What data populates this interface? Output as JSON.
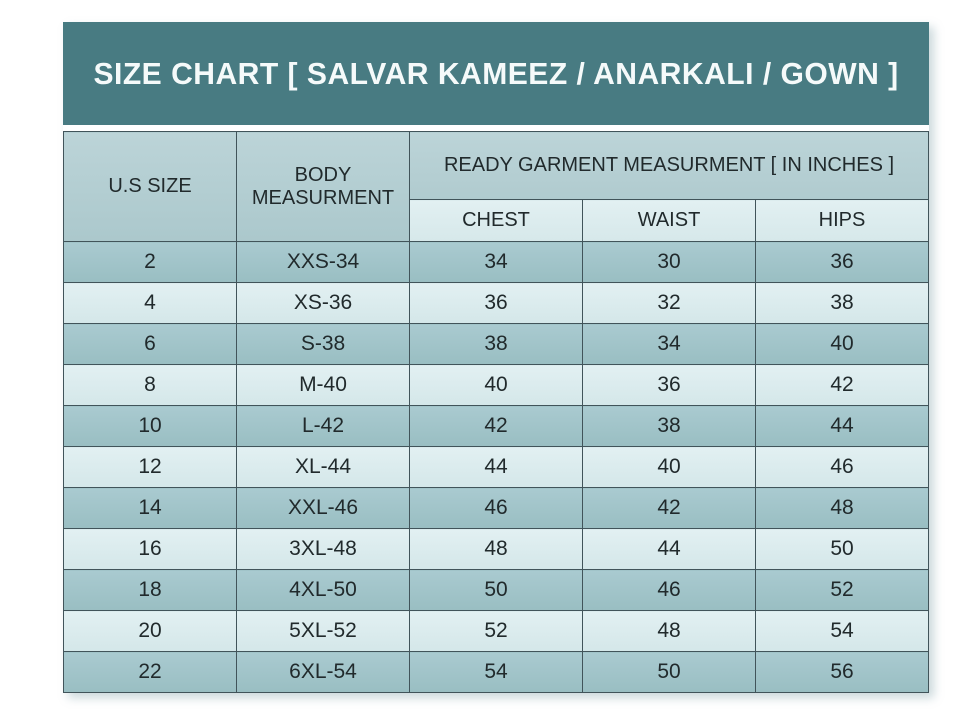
{
  "title_bar": {
    "text": "SIZE CHART [ SALVAR KAMEEZ / ANARKALI / GOWN ]"
  },
  "chart_data": {
    "type": "table",
    "title": "SIZE CHART [ SALVAR KAMEEZ / ANARKALI / GOWN ]",
    "header": {
      "us_size": "U.S SIZE",
      "body_measurement": "BODY MEASURMENT",
      "group": "READY GARMENT MEASURMENT [ IN INCHES ]",
      "sub_columns": [
        "CHEST",
        "WAIST",
        "HIPS"
      ]
    },
    "columns": [
      "U.S SIZE",
      "BODY MEASURMENT",
      "CHEST",
      "WAIST",
      "HIPS"
    ],
    "rows": [
      [
        "2",
        "XXS-34",
        "34",
        "30",
        "36"
      ],
      [
        "4",
        "XS-36",
        "36",
        "32",
        "38"
      ],
      [
        "6",
        "S-38",
        "38",
        "34",
        "40"
      ],
      [
        "8",
        "M-40",
        "40",
        "36",
        "42"
      ],
      [
        "10",
        "L-42",
        "42",
        "38",
        "44"
      ],
      [
        "12",
        "XL-44",
        "44",
        "40",
        "46"
      ],
      [
        "14",
        "XXL-46",
        "46",
        "42",
        "48"
      ],
      [
        "16",
        "3XL-48",
        "48",
        "44",
        "50"
      ],
      [
        "18",
        "4XL-50",
        "50",
        "46",
        "52"
      ],
      [
        "20",
        "5XL-52",
        "52",
        "48",
        "54"
      ],
      [
        "22",
        "6XL-54",
        "54",
        "50",
        "56"
      ]
    ]
  },
  "colors": {
    "title_bg": "#487b82",
    "title_text": "#f5fafa",
    "header_bg": "#b3ced2",
    "subheader_bg": "#dcedee",
    "row_dark": "#a0c4c7",
    "row_light": "#dcedee",
    "border": "#41545a",
    "text": "#212a2c"
  }
}
